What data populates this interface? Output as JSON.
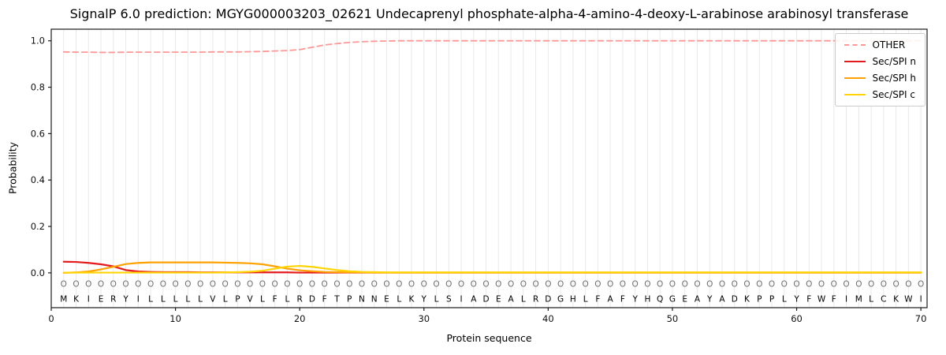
{
  "chart_data": {
    "type": "line",
    "title": "SignalP 6.0 prediction: MGYG000003203_02621 Undecaprenyl phosphate-alpha-4-amino-4-deoxy-L-arabinose arabinosyl transferase",
    "xlabel": "Protein sequence",
    "ylabel": "Probability",
    "xlim": [
      0,
      70.5
    ],
    "ylim": [
      -0.15,
      1.05
    ],
    "x_ticks": [
      0,
      10,
      20,
      30,
      40,
      50,
      60,
      70
    ],
    "y_ticks": [
      0.0,
      0.2,
      0.4,
      0.6,
      0.8,
      1.0
    ],
    "grid": "light vertical gridline at each residue position",
    "legend_position": "upper right",
    "x_start": 1,
    "sequence": "MKIERYILLLLLVLPVLFLRDFTPNNELKYLSIADEALRDGHLFAFYHQGEAYADKPPLYFWFIMLCKWI",
    "per_position_prediction": "O",
    "series": [
      {
        "name": "OTHER",
        "color": "#ff9896",
        "dash": [
          7,
          4.5
        ],
        "values": [
          0.952,
          0.951,
          0.951,
          0.95,
          0.95,
          0.951,
          0.951,
          0.951,
          0.951,
          0.951,
          0.951,
          0.951,
          0.952,
          0.952,
          0.952,
          0.953,
          0.954,
          0.956,
          0.958,
          0.962,
          0.972,
          0.982,
          0.988,
          0.993,
          0.996,
          0.998,
          0.999,
          1.0,
          1.0,
          1.0,
          1.0,
          1.0,
          1.0,
          1.0,
          1.0,
          1.0,
          1.0,
          1.0,
          1.0,
          1.0,
          1.0,
          1.0,
          1.0,
          1.0,
          1.0,
          1.0,
          1.0,
          1.0,
          1.0,
          1.0,
          1.0,
          1.0,
          1.0,
          1.0,
          1.0,
          1.0,
          1.0,
          1.0,
          1.0,
          1.0,
          1.0,
          1.0,
          1.0,
          1.0,
          1.0,
          1.0,
          1.0,
          1.0,
          1.0,
          1.0
        ]
      },
      {
        "name": "Sec/SPI n",
        "color": "#e41a1c",
        "dash": null,
        "values": [
          0.048,
          0.047,
          0.043,
          0.037,
          0.028,
          0.012,
          0.006,
          0.004,
          0.003,
          0.003,
          0.003,
          0.002,
          0.002,
          0.002,
          0.002,
          0.002,
          0.002,
          0.002,
          0.002,
          0.001,
          0.001,
          0.001,
          0.001,
          0.001,
          0.001,
          0.001,
          0.001,
          0.001,
          0.001,
          0.001,
          0.001,
          0.001,
          0.001,
          0.001,
          0.001,
          0.001,
          0.001,
          0.001,
          0.001,
          0.001,
          0.001,
          0.001,
          0.001,
          0.001,
          0.001,
          0.001,
          0.001,
          0.001,
          0.001,
          0.001,
          0.001,
          0.001,
          0.001,
          0.001,
          0.001,
          0.001,
          0.001,
          0.001,
          0.001,
          0.001,
          0.001,
          0.001,
          0.001,
          0.001,
          0.001,
          0.001,
          0.001,
          0.001,
          0.001,
          0.001
        ]
      },
      {
        "name": "Sec/SPI h",
        "color": "#ffa200",
        "dash": null,
        "values": [
          0.0,
          0.002,
          0.006,
          0.015,
          0.026,
          0.038,
          0.043,
          0.045,
          0.045,
          0.045,
          0.045,
          0.045,
          0.045,
          0.044,
          0.043,
          0.041,
          0.037,
          0.028,
          0.018,
          0.011,
          0.007,
          0.004,
          0.003,
          0.002,
          0.002,
          0.001,
          0.001,
          0.001,
          0.001,
          0.001,
          0.001,
          0.001,
          0.001,
          0.001,
          0.001,
          0.001,
          0.001,
          0.001,
          0.001,
          0.001,
          0.001,
          0.001,
          0.001,
          0.001,
          0.001,
          0.001,
          0.001,
          0.001,
          0.001,
          0.001,
          0.001,
          0.001,
          0.001,
          0.001,
          0.001,
          0.001,
          0.001,
          0.001,
          0.001,
          0.001,
          0.001,
          0.001,
          0.001,
          0.001,
          0.001,
          0.001,
          0.001,
          0.001,
          0.001,
          0.001
        ]
      },
      {
        "name": "Sec/SPI c",
        "color": "#ffd400",
        "dash": null,
        "values": [
          0.001,
          0.001,
          0.001,
          0.001,
          0.001,
          0.001,
          0.001,
          0.001,
          0.001,
          0.001,
          0.001,
          0.001,
          0.001,
          0.002,
          0.003,
          0.005,
          0.009,
          0.018,
          0.027,
          0.03,
          0.026,
          0.019,
          0.012,
          0.007,
          0.004,
          0.003,
          0.002,
          0.002,
          0.002,
          0.002,
          0.002,
          0.002,
          0.002,
          0.002,
          0.002,
          0.002,
          0.002,
          0.002,
          0.002,
          0.002,
          0.002,
          0.002,
          0.002,
          0.002,
          0.002,
          0.002,
          0.002,
          0.002,
          0.002,
          0.002,
          0.002,
          0.002,
          0.002,
          0.002,
          0.002,
          0.002,
          0.002,
          0.002,
          0.002,
          0.002,
          0.002,
          0.002,
          0.002,
          0.002,
          0.002,
          0.002,
          0.002,
          0.002,
          0.002,
          0.002
        ]
      }
    ]
  }
}
